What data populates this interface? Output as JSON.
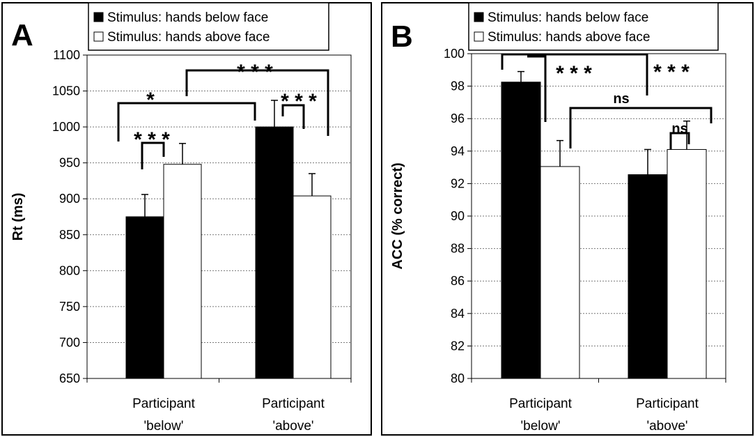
{
  "chart_data": [
    {
      "type": "bar",
      "panel_letter": "A",
      "categories": [
        "Participant\n'below'",
        "Participant\n'above'"
      ],
      "series": [
        {
          "name": "Stimulus: hands below face",
          "color": "#000000",
          "values": [
            875,
            1000
          ],
          "errors": [
            31,
            37
          ]
        },
        {
          "name": "Stimulus: hands above face",
          "color": "#ffffff",
          "values": [
            948,
            904
          ],
          "errors": [
            29,
            31
          ]
        }
      ],
      "xlabel": "",
      "ylabel": "Rt (ms)",
      "ylim": [
        650,
        1100
      ],
      "yticks": [
        650,
        700,
        750,
        800,
        850,
        900,
        950,
        1000,
        1050,
        1100
      ],
      "grid": true,
      "legend_position": "top",
      "annotations": [
        "*",
        "* * *",
        "* * *",
        "* * *"
      ]
    },
    {
      "type": "bar",
      "panel_letter": "B",
      "categories": [
        "Participant\n'below'",
        "Participant\n'above'"
      ],
      "series": [
        {
          "name": "Stimulus: hands below face",
          "color": "#000000",
          "values": [
            98.25,
            92.55
          ],
          "errors": [
            0.65,
            1.55
          ]
        },
        {
          "name": "Stimulus: hands above face",
          "color": "#ffffff",
          "values": [
            93.05,
            94.1
          ],
          "errors": [
            1.6,
            1.75
          ]
        }
      ],
      "xlabel": "",
      "ylabel": "ACC (% correct)",
      "ylim": [
        80,
        100
      ],
      "yticks": [
        80,
        82,
        84,
        86,
        88,
        90,
        92,
        94,
        96,
        98,
        100
      ],
      "grid": true,
      "legend_position": "top",
      "annotations": [
        "* * *",
        "* * *",
        "ns",
        "ns"
      ]
    }
  ]
}
